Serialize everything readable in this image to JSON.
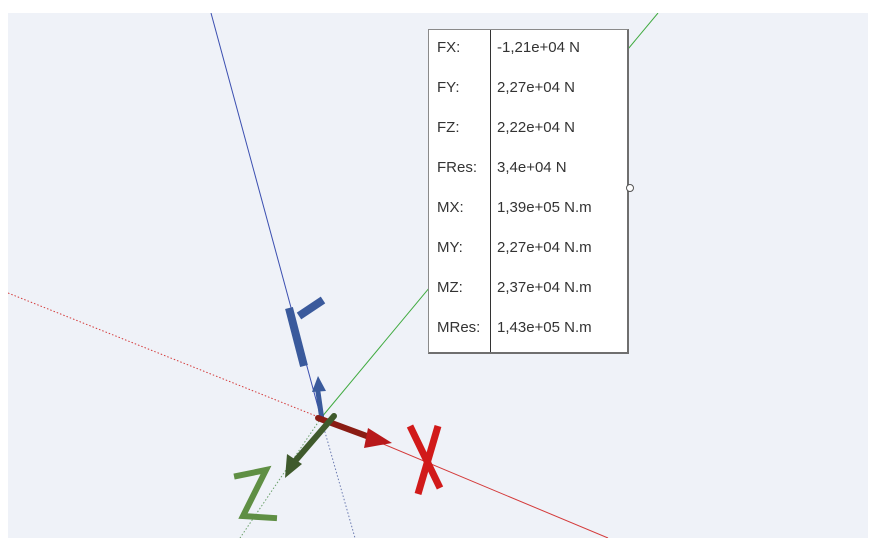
{
  "axes": {
    "x_label": "X",
    "y_label": "Y",
    "z_label": "Z",
    "colors": {
      "x": "#c8181b",
      "y": "#3a5a9c",
      "z": "#5c8a3c",
      "x_dark": "#8a1c14",
      "z_dark": "#3f5a2c"
    }
  },
  "results": {
    "rows": [
      {
        "label": "FX:",
        "value": "-1,21e+04 N"
      },
      {
        "label": "FY:",
        "value": "2,27e+04 N"
      },
      {
        "label": "FZ:",
        "value": "2,22e+04 N"
      },
      {
        "label": "FRes:",
        "value": "3,4e+04 N"
      },
      {
        "label": "MX:",
        "value": "1,39e+05 N.m"
      },
      {
        "label": "MY:",
        "value": "2,27e+04 N.m"
      },
      {
        "label": "MZ:",
        "value": "2,37e+04 N.m"
      },
      {
        "label": "MRes:",
        "value": "1,43e+05 N.m"
      }
    ]
  }
}
